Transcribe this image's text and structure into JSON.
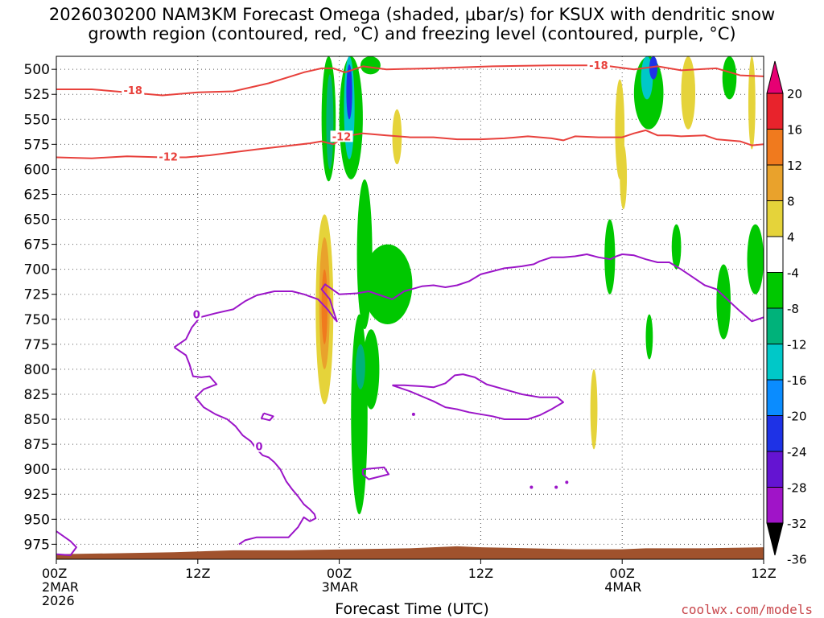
{
  "title_line1": "2026030200 NAM3KM Forecast Omega (shaded, μbar/s) for KSUX with dendritic snow",
  "title_line2": "growth region (contoured, red, °C) and freezing level (contoured, purple, °C)",
  "xlabel": "Forecast Time (UTC)",
  "credit": "coolwx.com/models",
  "colors": {
    "dgz_contour": "#e8413c",
    "freezing_contour": "#9b15c8",
    "terrain": "#a0522d"
  },
  "chart_data": {
    "type": "heatmap",
    "x_ticks": [
      {
        "hour": 0,
        "label": "00Z",
        "sub1": "2MAR",
        "sub2": "2026"
      },
      {
        "hour": 12,
        "label": "12Z",
        "sub1": "",
        "sub2": ""
      },
      {
        "hour": 24,
        "label": "00Z",
        "sub1": "3MAR",
        "sub2": ""
      },
      {
        "hour": 36,
        "label": "12Z",
        "sub1": "",
        "sub2": ""
      },
      {
        "hour": 48,
        "label": "00Z",
        "sub1": "4MAR",
        "sub2": ""
      },
      {
        "hour": 60,
        "label": "12Z",
        "sub1": "",
        "sub2": ""
      }
    ],
    "xlim": [
      0,
      60
    ],
    "y_levels": [
      "500",
      "525",
      "550",
      "575",
      "600",
      "625",
      "650",
      "675",
      "700",
      "725",
      "750",
      "775",
      "800",
      "825",
      "850",
      "875",
      "900",
      "925",
      "950",
      "975"
    ],
    "ylim": [
      487,
      990
    ],
    "colorbar": {
      "labels": [
        "20",
        "16",
        "12",
        "8",
        "4",
        "-4",
        "-8",
        "-12",
        "-16",
        "-20",
        "-24",
        "-28",
        "-32",
        "-36"
      ],
      "colors": [
        "#e60073",
        "#e8232c",
        "#f07a1e",
        "#e9a22c",
        "#e5d33a",
        "#ffffff",
        "#00c800",
        "#00b27a",
        "#00c8c8",
        "#0a8cff",
        "#1e32e6",
        "#6414d2",
        "#a014c8",
        "#a0a0a0"
      ]
    },
    "omega_blobs": [
      {
        "t0": 22.5,
        "t1": 23.7,
        "p0": 487,
        "p1": 612,
        "value": -6
      },
      {
        "t0": 22.9,
        "t1": 23.5,
        "p0": 505,
        "p1": 600,
        "value": -10
      },
      {
        "t0": 24.0,
        "t1": 26.0,
        "p0": 487,
        "p1": 610,
        "value": -6
      },
      {
        "t0": 24.4,
        "t1": 25.3,
        "p0": 487,
        "p1": 590,
        "value": -12
      },
      {
        "t0": 24.6,
        "t1": 25.1,
        "p0": 495,
        "p1": 550,
        "value": -22
      },
      {
        "t0": 25.8,
        "t1": 27.5,
        "p0": 487,
        "p1": 505,
        "value": -6
      },
      {
        "t0": 25.5,
        "t1": 26.8,
        "p0": 610,
        "p1": 760,
        "value": -6
      },
      {
        "t0": 26.0,
        "t1": 30.2,
        "p0": 675,
        "p1": 755,
        "value": -6
      },
      {
        "t0": 25.0,
        "t1": 26.4,
        "p0": 745,
        "p1": 945,
        "value": -6
      },
      {
        "t0": 26.0,
        "t1": 27.4,
        "p0": 760,
        "p1": 840,
        "value": -6
      },
      {
        "t0": 25.4,
        "t1": 26.2,
        "p0": 775,
        "p1": 820,
        "value": -10
      },
      {
        "t0": 22.0,
        "t1": 23.5,
        "p0": 645,
        "p1": 835,
        "value": 6
      },
      {
        "t0": 22.3,
        "t1": 23.2,
        "p0": 668,
        "p1": 800,
        "value": 10
      },
      {
        "t0": 22.5,
        "t1": 23.0,
        "p0": 700,
        "p1": 775,
        "value": 16
      },
      {
        "t0": 28.5,
        "t1": 29.3,
        "p0": 540,
        "p1": 595,
        "value": 6
      },
      {
        "t0": 49.0,
        "t1": 51.5,
        "p0": 487,
        "p1": 560,
        "value": -6
      },
      {
        "t0": 49.6,
        "t1": 50.6,
        "p0": 487,
        "p1": 530,
        "value": -12
      },
      {
        "t0": 50.3,
        "t1": 51.0,
        "p0": 487,
        "p1": 510,
        "value": -20
      },
      {
        "t0": 53.0,
        "t1": 54.2,
        "p0": 487,
        "p1": 560,
        "value": 6
      },
      {
        "t0": 56.5,
        "t1": 57.7,
        "p0": 487,
        "p1": 530,
        "value": -6
      },
      {
        "t0": 58.7,
        "t1": 59.3,
        "p0": 487,
        "p1": 580,
        "value": 6
      },
      {
        "t0": 47.4,
        "t1": 48.2,
        "p0": 510,
        "p1": 610,
        "value": 6
      },
      {
        "t0": 47.8,
        "t1": 48.4,
        "p0": 575,
        "p1": 640,
        "value": 6
      },
      {
        "t0": 46.5,
        "t1": 47.4,
        "p0": 650,
        "p1": 725,
        "value": -6
      },
      {
        "t0": 52.2,
        "t1": 53.0,
        "p0": 655,
        "p1": 700,
        "value": -6
      },
      {
        "t0": 56.0,
        "t1": 57.2,
        "p0": 695,
        "p1": 770,
        "value": -6
      },
      {
        "t0": 58.6,
        "t1": 60.0,
        "p0": 655,
        "p1": 725,
        "value": -6
      },
      {
        "t0": 50.0,
        "t1": 50.6,
        "p0": 745,
        "p1": 790,
        "value": -6
      },
      {
        "t0": 45.3,
        "t1": 45.9,
        "p0": 800,
        "p1": 880,
        "value": 6
      }
    ],
    "dgz_contours": [
      {
        "label": "-18",
        "label_at": [
          6.5,
          521
        ],
        "points": [
          [
            0,
            520
          ],
          [
            3,
            520
          ],
          [
            6,
            523
          ],
          [
            9,
            526
          ],
          [
            12,
            523
          ],
          [
            15,
            522
          ],
          [
            18,
            514
          ],
          [
            21,
            503
          ],
          [
            22.5,
            499
          ],
          [
            23.5,
            499
          ],
          [
            24.5,
            503
          ],
          [
            26,
            497
          ],
          [
            28,
            500
          ],
          [
            32,
            499
          ],
          [
            37,
            497
          ],
          [
            42,
            496
          ],
          [
            45,
            496
          ],
          [
            47,
            497
          ],
          [
            49,
            500
          ],
          [
            51,
            497
          ],
          [
            53,
            501
          ],
          [
            56,
            499
          ],
          [
            58,
            506
          ],
          [
            60,
            507
          ]
        ]
      },
      {
        "label": "-18",
        "label_at": [
          46,
          496
        ],
        "points": []
      },
      {
        "label": "-12",
        "label_at": [
          9.5,
          587
        ],
        "points": [
          [
            0,
            588
          ],
          [
            3,
            589
          ],
          [
            6,
            587
          ],
          [
            9,
            588
          ],
          [
            11,
            588
          ],
          [
            13,
            586
          ],
          [
            15,
            583
          ],
          [
            17,
            580
          ],
          [
            18.5,
            578
          ],
          [
            20,
            576
          ],
          [
            21.5,
            574
          ],
          [
            22.5,
            572
          ],
          [
            23.5,
            575
          ],
          [
            24.5,
            567
          ],
          [
            26,
            564
          ],
          [
            28,
            566
          ],
          [
            30,
            568
          ],
          [
            32,
            568
          ],
          [
            34,
            570
          ],
          [
            36,
            570
          ],
          [
            38,
            569
          ],
          [
            40,
            567
          ],
          [
            42,
            569
          ],
          [
            43,
            571
          ],
          [
            44,
            567
          ],
          [
            46,
            568
          ],
          [
            48,
            568
          ],
          [
            49,
            564
          ],
          [
            50,
            561
          ],
          [
            51,
            566
          ],
          [
            52,
            566
          ],
          [
            53,
            567
          ],
          [
            55,
            566
          ],
          [
            56,
            570
          ],
          [
            58,
            572
          ],
          [
            59,
            576
          ],
          [
            60,
            575
          ]
        ]
      },
      {
        "label": "-12",
        "label_at": [
          24.2,
          567
        ],
        "points": []
      }
    ],
    "freezing_contours": [
      {
        "label": "0",
        "label_at": [
          11.9,
          745
        ],
        "points": [
          [
            10,
            778
          ],
          [
            11,
            770
          ],
          [
            11.5,
            758
          ],
          [
            12.2,
            748
          ],
          [
            13.5,
            744
          ],
          [
            15,
            740
          ],
          [
            16,
            732
          ],
          [
            17,
            726
          ],
          [
            18.5,
            722
          ],
          [
            20,
            722
          ],
          [
            21,
            725
          ],
          [
            22.2,
            730
          ],
          [
            23,
            740
          ],
          [
            23.5,
            748
          ],
          [
            23.8,
            752
          ],
          [
            23.6,
            745
          ],
          [
            23.2,
            730
          ],
          [
            22.5,
            720
          ],
          [
            22.8,
            715
          ],
          [
            24,
            725
          ],
          [
            25.5,
            724
          ],
          [
            26.5,
            722
          ],
          [
            27.5,
            726
          ],
          [
            28.5,
            730
          ],
          [
            29.5,
            722
          ],
          [
            31,
            717
          ],
          [
            32,
            716
          ],
          [
            33,
            718
          ],
          [
            34,
            716
          ],
          [
            35,
            712
          ],
          [
            36,
            705
          ],
          [
            37,
            702
          ],
          [
            38,
            699
          ],
          [
            39.5,
            697
          ],
          [
            40.5,
            695
          ],
          [
            41,
            692
          ],
          [
            42,
            688
          ],
          [
            43,
            688
          ],
          [
            44,
            687
          ],
          [
            45,
            685
          ],
          [
            46,
            688
          ],
          [
            47,
            690
          ],
          [
            47.5,
            687
          ],
          [
            48,
            685
          ],
          [
            49,
            686
          ],
          [
            50,
            690
          ],
          [
            51,
            693
          ],
          [
            52,
            693
          ],
          [
            53,
            700
          ],
          [
            54,
            708
          ],
          [
            55,
            716
          ],
          [
            56,
            720
          ],
          [
            57,
            731
          ],
          [
            58,
            742
          ],
          [
            59,
            752
          ],
          [
            60,
            748
          ]
        ]
      },
      {
        "label": "0",
        "label_at": [
          17.2,
          877
        ],
        "points": [
          [
            10,
            778
          ],
          [
            11,
            786
          ],
          [
            11.3,
            795
          ],
          [
            11.6,
            807
          ],
          [
            12.3,
            808
          ],
          [
            13,
            807
          ],
          [
            13.6,
            815
          ],
          [
            12.5,
            820
          ],
          [
            11.8,
            828
          ],
          [
            12.5,
            838
          ],
          [
            13.5,
            845
          ],
          [
            14.5,
            850
          ],
          [
            15.2,
            857
          ],
          [
            15.8,
            866
          ],
          [
            16.5,
            872
          ],
          [
            17,
            880
          ],
          [
            17.5,
            886
          ],
          [
            18,
            888
          ],
          [
            18.5,
            893
          ],
          [
            19,
            900
          ],
          [
            19.5,
            912
          ],
          [
            20,
            920
          ],
          [
            20.5,
            927
          ],
          [
            21,
            935
          ],
          [
            21.5,
            940
          ],
          [
            21.9,
            945
          ],
          [
            22,
            949
          ],
          [
            21.5,
            952
          ],
          [
            21,
            948
          ],
          [
            20.5,
            958
          ],
          [
            19.7,
            968
          ],
          [
            18.5,
            968
          ],
          [
            17,
            968
          ],
          [
            16,
            971
          ],
          [
            15.5,
            975
          ]
        ]
      },
      {
        "label": "",
        "label_at": [
          0,
          0
        ],
        "points": [
          [
            28.5,
            816
          ],
          [
            30,
            822
          ],
          [
            31,
            827
          ],
          [
            32,
            832
          ],
          [
            33,
            838
          ],
          [
            34,
            840
          ],
          [
            35,
            843
          ],
          [
            36,
            845
          ],
          [
            37,
            847
          ],
          [
            38,
            850
          ],
          [
            40,
            850
          ],
          [
            41,
            846
          ],
          [
            42,
            840
          ],
          [
            43,
            833
          ],
          [
            42.5,
            828
          ],
          [
            41,
            828
          ],
          [
            39.5,
            825
          ],
          [
            38,
            820
          ],
          [
            36.5,
            815
          ],
          [
            35.5,
            808
          ],
          [
            34.5,
            805
          ],
          [
            33.8,
            806
          ],
          [
            33,
            814
          ],
          [
            32,
            818
          ],
          [
            31,
            817
          ],
          [
            29.5,
            816
          ],
          [
            28.5,
            816
          ]
        ]
      },
      {
        "label": "",
        "label_at": [
          0,
          0
        ],
        "points": [
          [
            26,
            900
          ],
          [
            27.8,
            898
          ],
          [
            28.2,
            905
          ],
          [
            26.5,
            910
          ],
          [
            26,
            905
          ],
          [
            26,
            900
          ]
        ]
      },
      {
        "label": "",
        "label_at": [
          0,
          0
        ],
        "points": [
          [
            0,
            962
          ],
          [
            1.2,
            972
          ],
          [
            1.7,
            978
          ],
          [
            1.2,
            986
          ],
          [
            0,
            985
          ]
        ]
      },
      {
        "label": "",
        "label_at": [
          0,
          0
        ],
        "points": [
          [
            17.6,
            844
          ],
          [
            18.4,
            847
          ],
          [
            18.1,
            851
          ],
          [
            17.4,
            849
          ],
          [
            17.6,
            844
          ]
        ]
      }
    ],
    "terrain_top": [
      [
        0,
        985
      ],
      [
        10,
        983
      ],
      [
        15,
        981
      ],
      [
        20,
        981
      ],
      [
        30,
        979
      ],
      [
        34,
        977
      ],
      [
        36,
        978
      ],
      [
        44,
        980
      ],
      [
        48,
        980
      ],
      [
        50,
        979
      ],
      [
        55,
        979
      ],
      [
        60,
        978
      ]
    ]
  }
}
